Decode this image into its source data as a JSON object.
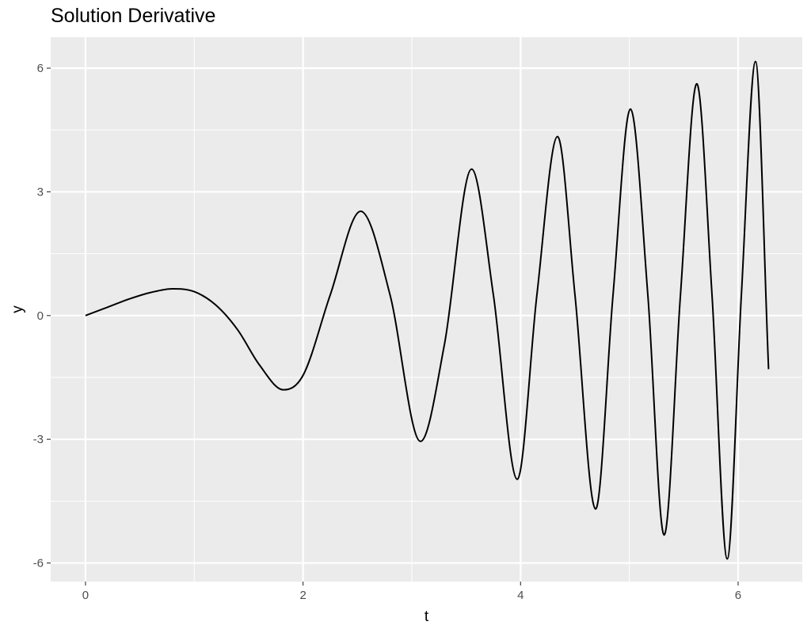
{
  "chart_data": {
    "type": "line",
    "title": "Solution Derivative",
    "xlabel": "t",
    "ylabel": "y",
    "xlim": [
      -0.32,
      6.59
    ],
    "ylim": [
      -6.45,
      6.75
    ],
    "x_ticks": [
      0,
      2,
      4,
      6
    ],
    "x_tick_labels": [
      "0",
      "2",
      "4",
      "6"
    ],
    "y_ticks": [
      -6,
      -3,
      0,
      3,
      6
    ],
    "y_tick_labels": [
      "-6",
      "-3",
      "0",
      "3",
      "6"
    ],
    "grid": true,
    "background": "#ebebeb",
    "gridline_color": "#ffffff",
    "series": [
      {
        "color": "#000000",
        "points": [
          [
            0,
            0
          ],
          [
            0.2,
            0.2
          ],
          [
            0.4,
            0.4
          ],
          [
            0.6,
            0.56
          ],
          [
            0.8,
            0.65
          ],
          [
            1.0,
            0.58
          ],
          [
            1.2,
            0.25
          ],
          [
            1.4,
            -0.35
          ],
          [
            1.6,
            -1.2
          ],
          [
            1.82,
            -1.8
          ],
          [
            2.0,
            -1.45
          ],
          [
            2.25,
            0.5
          ],
          [
            2.53,
            2.53
          ],
          [
            2.8,
            0.5
          ],
          [
            3.08,
            -3.05
          ],
          [
            3.3,
            -0.7
          ],
          [
            3.55,
            3.55
          ],
          [
            3.75,
            0.5
          ],
          [
            3.97,
            -3.97
          ],
          [
            4.15,
            0.5
          ],
          [
            4.34,
            4.34
          ],
          [
            4.5,
            0.5
          ],
          [
            4.69,
            -4.69
          ],
          [
            4.85,
            0.5
          ],
          [
            5.01,
            5.01
          ],
          [
            5.17,
            0.5
          ],
          [
            5.32,
            -5.32
          ],
          [
            5.47,
            0.5
          ],
          [
            5.62,
            5.62
          ],
          [
            5.76,
            0.5
          ],
          [
            5.9,
            -5.9
          ],
          [
            6.03,
            0.5
          ],
          [
            6.16,
            6.16
          ],
          [
            6.28,
            -1.3
          ]
        ]
      }
    ]
  }
}
